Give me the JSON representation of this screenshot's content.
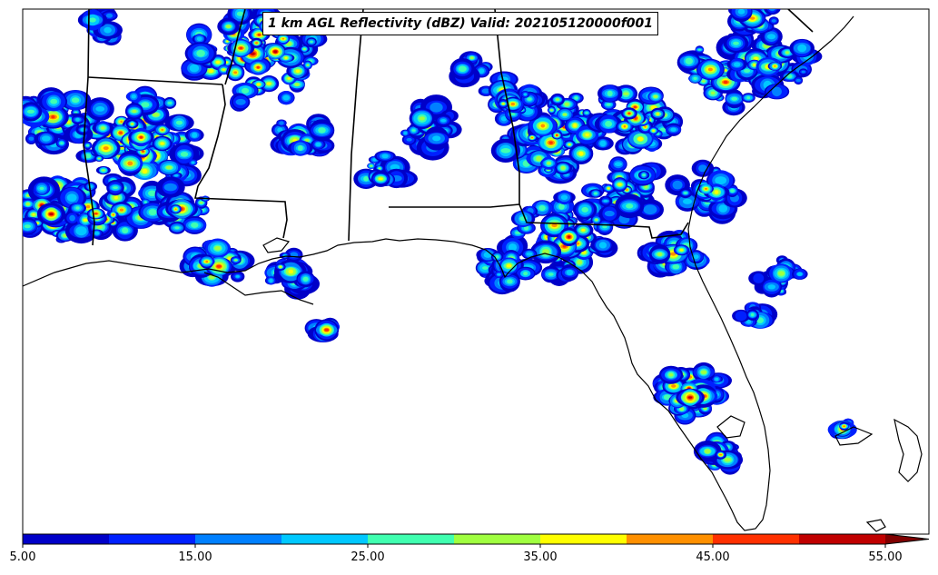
{
  "title": "1 km AGL Reflectivity (dBZ) Valid: 202105120000f001",
  "colorbar": {
    "labels": [
      "5.00",
      "15.00",
      "25.00",
      "35.00",
      "45.00",
      "55.00"
    ],
    "bins": [
      5,
      10,
      15,
      20,
      25,
      30,
      35,
      40,
      45,
      50,
      55
    ],
    "colors": [
      "#0000c8",
      "#0020ff",
      "#0080ff",
      "#00c8ff",
      "#40ffb0",
      "#a0ff40",
      "#ffff00",
      "#ff9000",
      "#ff3000",
      "#c00000",
      "#800000"
    ],
    "extend": "max"
  }
}
